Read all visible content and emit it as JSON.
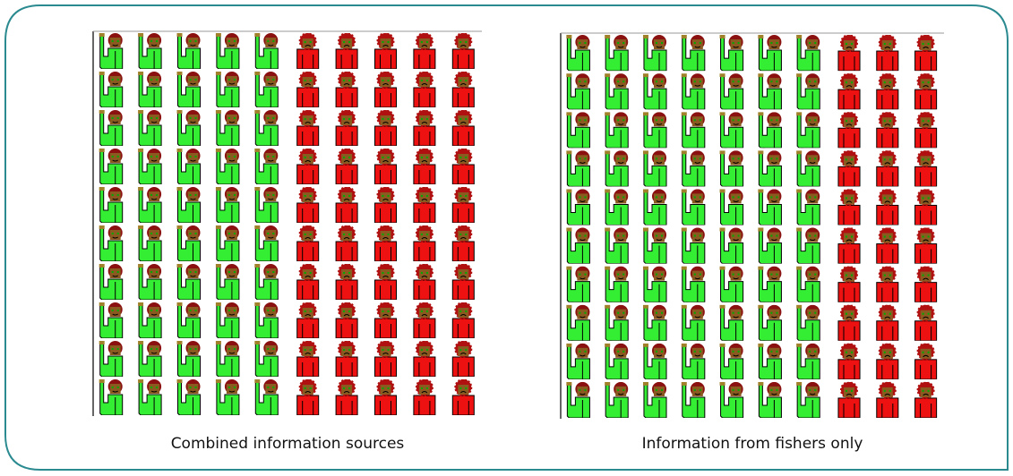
{
  "chart_data": [
    {
      "type": "icon-array",
      "title": "Combined information sources",
      "values": [
        50,
        50
      ],
      "colors": [
        "#33ee33",
        "#ee1111"
      ]
    },
    {
      "type": "icon-array",
      "title": "Information from fishers only",
      "values": [
        70,
        30
      ],
      "colors": [
        "#33ee33",
        "#ee1111"
      ]
    }
  ]
}
